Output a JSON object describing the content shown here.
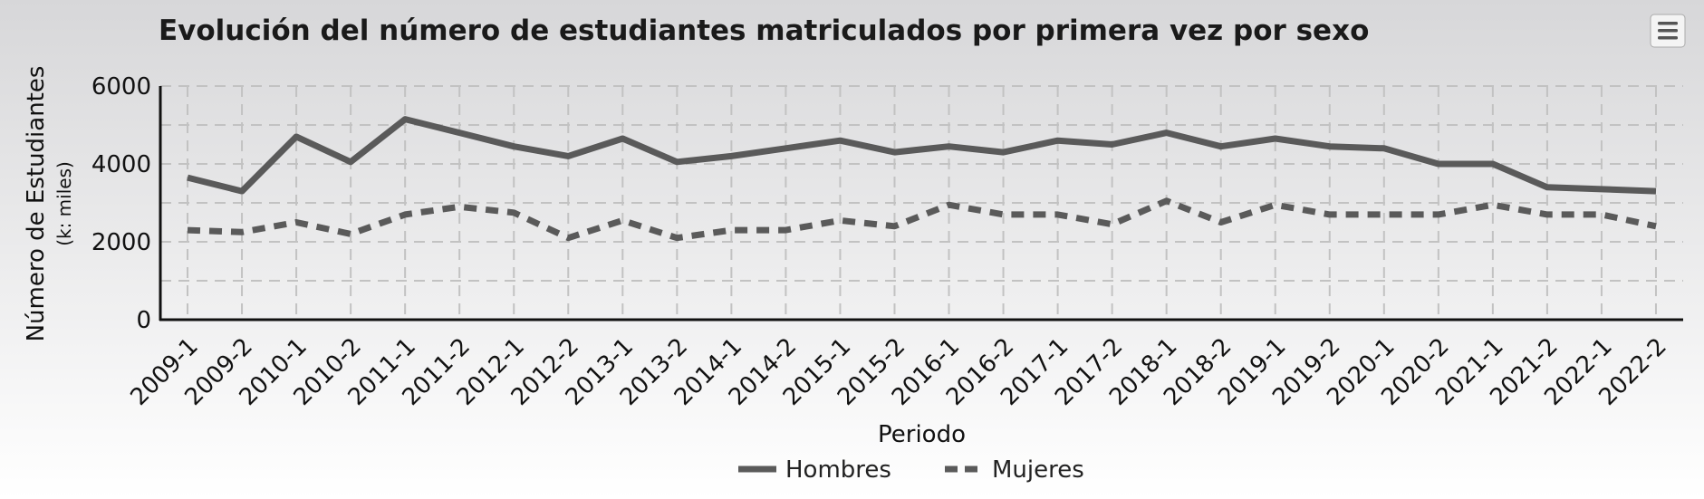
{
  "chart_data": {
    "type": "line",
    "title": "Evolución del número de estudiantes matriculados por primera vez por sexo",
    "xlabel": "Periodo",
    "ylabel": "Número de Estudiantes",
    "ylabel_sub": "(k: miles)",
    "ylim": [
      0,
      6000
    ],
    "yticks": [
      0,
      2000,
      4000,
      6000
    ],
    "grid": true,
    "legend_position": "bottom",
    "categories": [
      "2009-1",
      "2009-2",
      "2010-1",
      "2010-2",
      "2011-1",
      "2011-2",
      "2012-1",
      "2012-2",
      "2013-1",
      "2013-2",
      "2014-1",
      "2014-2",
      "2015-1",
      "2015-2",
      "2016-1",
      "2016-2",
      "2017-1",
      "2017-2",
      "2018-1",
      "2018-2",
      "2019-1",
      "2019-2",
      "2020-1",
      "2020-2",
      "2021-1",
      "2021-2",
      "2022-1",
      "2022-2"
    ],
    "series": [
      {
        "name": "Hombres",
        "style": "solid",
        "color": "#5a5a5a",
        "values": [
          3650,
          3300,
          4700,
          4050,
          5150,
          4800,
          4450,
          4200,
          4650,
          4050,
          4200,
          4400,
          4600,
          4300,
          4450,
          4300,
          4600,
          4500,
          4800,
          4450,
          4650,
          4450,
          4400,
          4000,
          4000,
          3400,
          3350,
          3300
        ]
      },
      {
        "name": "Mujeres",
        "style": "dashed",
        "color": "#5a5a5a",
        "values": [
          2300,
          2250,
          2500,
          2200,
          2700,
          2900,
          2750,
          2100,
          2550,
          2100,
          2300,
          2300,
          2550,
          2400,
          2950,
          2700,
          2700,
          2450,
          3050,
          2500,
          2950,
          2700,
          2700,
          2700,
          2950,
          2700,
          2700,
          2400
        ]
      }
    ]
  },
  "menu_icon": "hamburger-menu-icon"
}
